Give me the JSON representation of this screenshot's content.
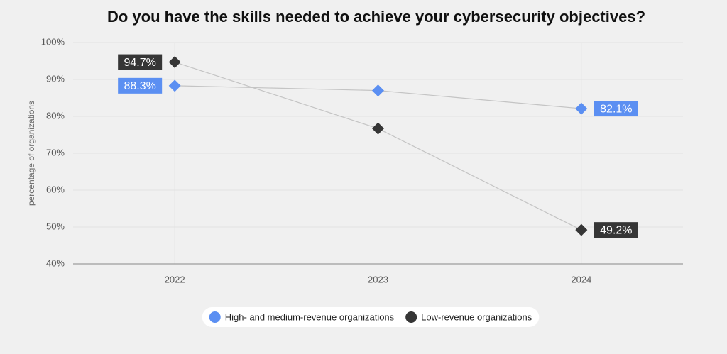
{
  "chart_data": {
    "type": "line",
    "title": "Do you have the skills needed to achieve your cybersecurity objectives?",
    "y_label": "percentage of organizations",
    "categories": [
      "2022",
      "2023",
      "2024"
    ],
    "series": [
      {
        "name": "High- and medium-revenue organizations",
        "color": "#5b8ff2",
        "values": [
          88.3,
          87.0,
          82.1
        ],
        "value_labels": [
          "88.3%",
          null,
          "82.1%"
        ]
      },
      {
        "name": "Low-revenue organizations",
        "color": "#363636",
        "values": [
          94.7,
          76.7,
          49.2
        ],
        "value_labels": [
          "94.7%",
          null,
          "49.2%"
        ]
      }
    ],
    "ylim": [
      40,
      100
    ],
    "yticks": [
      {
        "value": 40,
        "label": "40%"
      },
      {
        "value": 50,
        "label": "50%"
      },
      {
        "value": 60,
        "label": "60%"
      },
      {
        "value": 70,
        "label": "70%"
      },
      {
        "value": 80,
        "label": "80%"
      },
      {
        "value": 90,
        "label": "90%"
      },
      {
        "value": 100,
        "label": "100%"
      }
    ],
    "grid": true,
    "legend": "bottom"
  }
}
